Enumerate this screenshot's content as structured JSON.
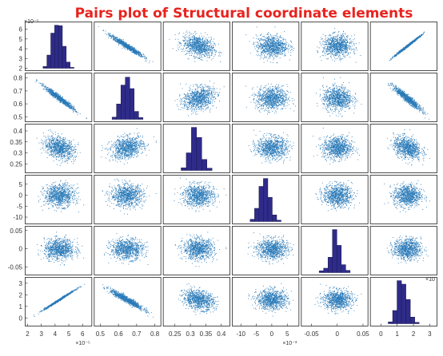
{
  "chart_data": {
    "type": "scatter",
    "title": "Pairs plot of Structural coordinate elements",
    "title_color": "#e8231e",
    "point_color": "#2a7ab8",
    "bar_fill": "#2e2b8a",
    "bar_edge": "#1a1a4a",
    "variables": [
      {
        "id": "v1",
        "range": [
          2,
          6.5
        ],
        "mean": 4.3,
        "sd": 0.55,
        "exponent": "×10⁻⁵",
        "y_ticks": [
          "6",
          "5",
          "4",
          "3",
          "2"
        ],
        "x_ticks": [
          "2",
          "3",
          "4",
          "5",
          "6"
        ],
        "x_exponent": "×10⁻⁵",
        "histogram": [
          0.04,
          0.3,
          0.8,
          0.98,
          0.97,
          0.5,
          0.14,
          0.02
        ]
      },
      {
        "id": "v2",
        "range": [
          0.48,
          0.82
        ],
        "mean": 0.645,
        "sd": 0.045,
        "exponent": "",
        "y_ticks": [
          "0.8",
          "0.7",
          "0.6",
          "0.5"
        ],
        "x_ticks": [
          "0.5",
          "0.6",
          "0.7",
          "0.8"
        ],
        "x_exponent": "",
        "histogram": [
          0.05,
          0.35,
          0.78,
          0.96,
          0.7,
          0.18,
          0.04
        ]
      },
      {
        "id": "v3",
        "range": [
          0.22,
          0.42
        ],
        "mean": 0.325,
        "sd": 0.025,
        "exponent": "",
        "y_ticks": [
          "0.4",
          "0.35",
          "0.3",
          "0.25"
        ],
        "x_ticks": [
          "0.25",
          "0.3",
          "0.35",
          "0.4"
        ],
        "x_exponent": "",
        "histogram": [
          0.06,
          0.4,
          0.98,
          0.75,
          0.25,
          0.05
        ]
      },
      {
        "id": "v4",
        "range": [
          -12,
          8
        ],
        "mean": 0,
        "sd": 2.5,
        "exponent": "",
        "y_ticks": [
          "5",
          "0",
          "-5",
          "-10"
        ],
        "x_ticks": [
          "-10",
          "-5",
          "0",
          "5"
        ],
        "x_exponent": "×10⁻³",
        "histogram": [
          0.05,
          0.3,
          0.8,
          0.98,
          0.55,
          0.15,
          0.03
        ]
      },
      {
        "id": "v5",
        "range": [
          -0.065,
          0.055
        ],
        "mean": 0,
        "sd": 0.014,
        "exponent": "",
        "y_ticks": [
          "0.05",
          "0",
          "-0.05"
        ],
        "x_ticks": [
          "-0.05",
          "0",
          "0.05"
        ],
        "x_exponent": "",
        "histogram": [
          0.04,
          0.1,
          0.35,
          0.98,
          0.62,
          0.18,
          0.05
        ]
      },
      {
        "id": "v6",
        "range": [
          -0.5,
          3.3
        ],
        "mean": 1.6,
        "sd": 0.42,
        "exponent": "",
        "y_ticks": [
          "3",
          "2",
          "1",
          "0"
        ],
        "x_ticks": [
          "0",
          "1",
          "2",
          "3"
        ],
        "x_exponent": "×10",
        "histogram": [
          0.04,
          0.3,
          0.98,
          0.9,
          0.55,
          0.15,
          0.03
        ]
      }
    ],
    "pair_correlations": [
      [
        0,
        1,
        -0.97
      ],
      [
        0,
        2,
        -0.3
      ],
      [
        0,
        3,
        0.0
      ],
      [
        0,
        4,
        0.0
      ],
      [
        0,
        5,
        0.995
      ],
      [
        1,
        2,
        0.25
      ],
      [
        1,
        3,
        0.0
      ],
      [
        1,
        4,
        0.0
      ],
      [
        1,
        5,
        -0.95
      ],
      [
        2,
        3,
        0.0
      ],
      [
        2,
        4,
        0.0
      ],
      [
        2,
        5,
        -0.3
      ],
      [
        3,
        4,
        0.0
      ],
      [
        3,
        5,
        0.0
      ],
      [
        4,
        5,
        0.0
      ]
    ],
    "samples_per_panel": 900
  }
}
